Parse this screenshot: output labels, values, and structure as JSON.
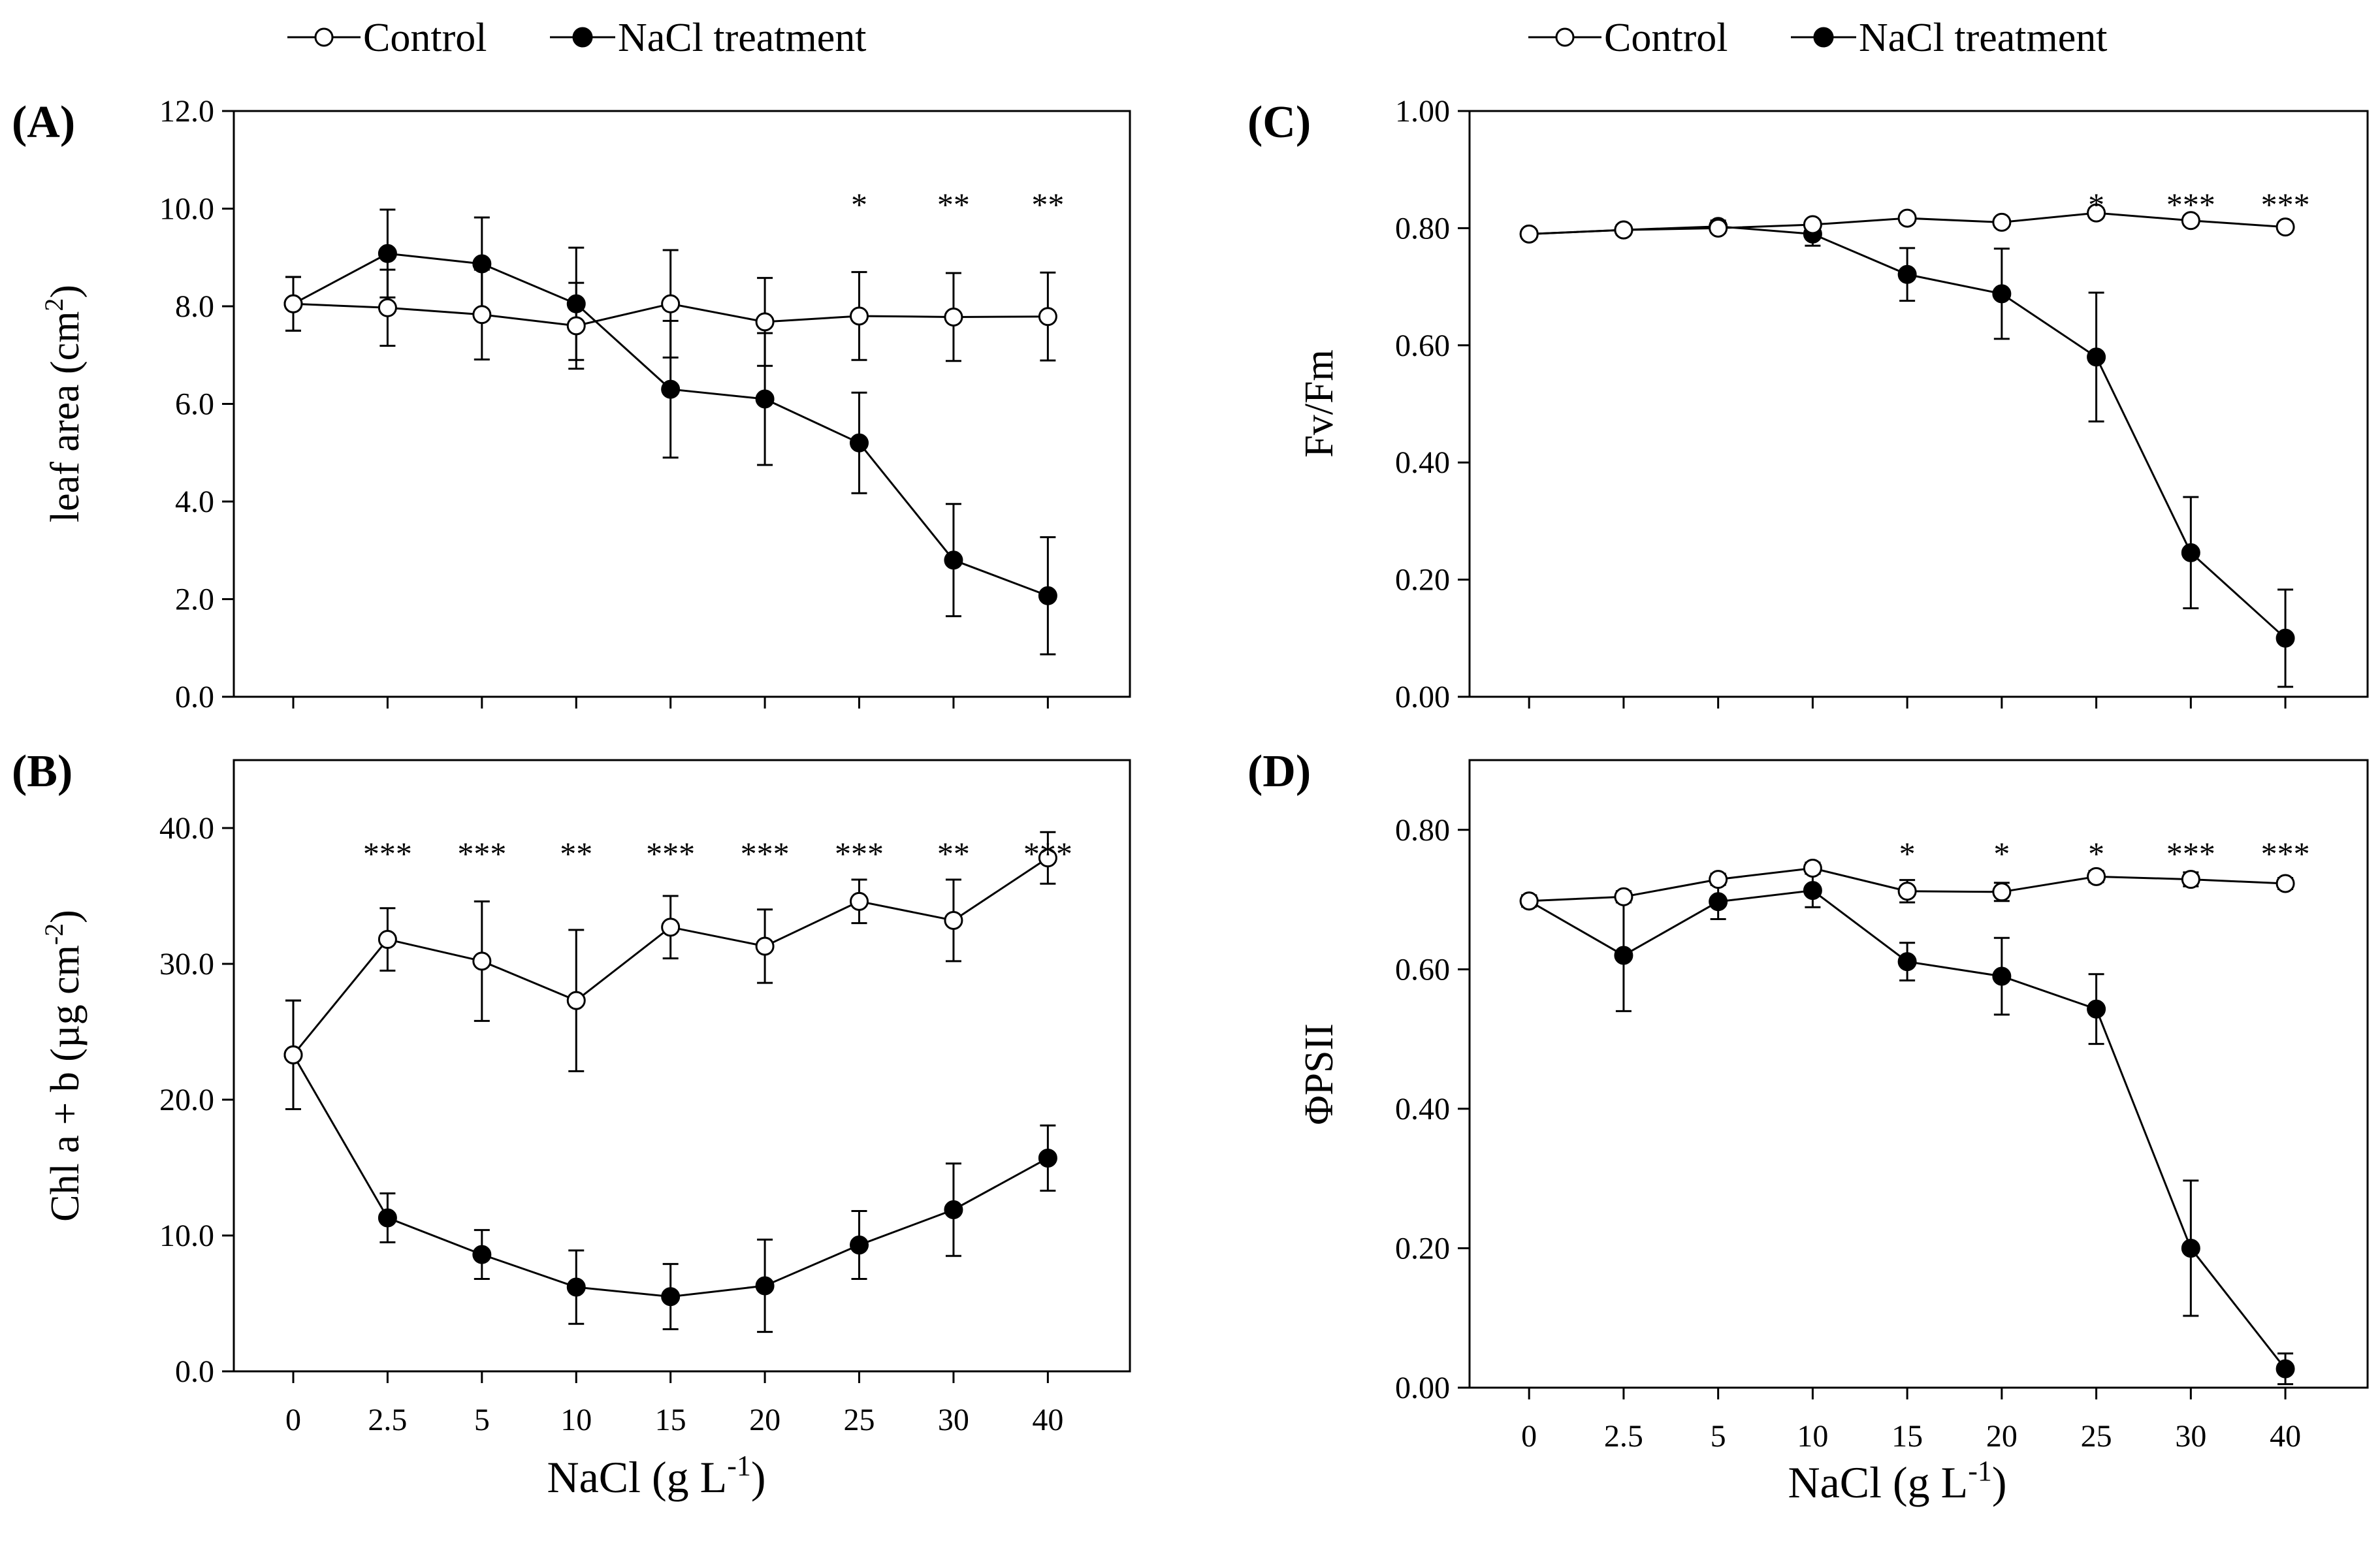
{
  "legend": {
    "control_label": "Control",
    "nacl_label": "NaCl treatment"
  },
  "x_title": "NaCl (g L",
  "x_title_exp": "-1",
  "x_title_end": ")",
  "categories": [
    "0",
    "2.5",
    "5",
    "10",
    "15",
    "20",
    "25",
    "30",
    "40"
  ],
  "chart_data": [
    {
      "type": "line",
      "panel": "(A)",
      "ylabel": "leaf area (cm",
      "ylabel_exp": "2",
      "ylabel_end": ")",
      "ylim": [
        0,
        12
      ],
      "yticks": [
        "0.0",
        "2.0",
        "4.0",
        "6.0",
        "8.0",
        "10.0",
        "12.0"
      ],
      "show_xticklabels": false,
      "series": [
        {
          "name": "Control",
          "values": [
            8.05,
            7.97,
            7.83,
            7.6,
            8.05,
            7.68,
            7.8,
            7.78,
            7.79
          ],
          "errors": [
            0.55,
            0.78,
            0.92,
            0.88,
            1.1,
            0.9,
            0.9,
            0.9,
            0.9
          ]
        },
        {
          "name": "NaCl treatment",
          "values": [
            8.05,
            9.08,
            8.87,
            8.05,
            6.3,
            6.1,
            5.2,
            2.8,
            2.07
          ],
          "errors": [
            0.55,
            0.9,
            0.95,
            1.15,
            1.4,
            1.35,
            1.03,
            1.15,
            1.2
          ]
        }
      ],
      "significance": [
        "",
        "",
        "",
        "",
        "",
        "",
        "*",
        "**",
        "**"
      ]
    },
    {
      "type": "line",
      "panel": "(B)",
      "ylabel": "Chl a + b (µg cm",
      "ylabel_exp": "-2",
      "ylabel_end": ")",
      "ylim": [
        0,
        45
      ],
      "yticks": [
        "0.0",
        "10.0",
        "20.0",
        "30.0",
        "40.0"
      ],
      "show_xticklabels": true,
      "series": [
        {
          "name": "Control",
          "values": [
            23.3,
            31.8,
            30.2,
            27.3,
            32.7,
            31.3,
            34.6,
            33.2,
            37.8
          ],
          "errors": [
            4.0,
            2.3,
            4.4,
            5.2,
            2.3,
            2.7,
            1.6,
            3.0,
            1.9
          ]
        },
        {
          "name": "NaCl treatment",
          "values": [
            23.3,
            11.3,
            8.6,
            6.2,
            5.5,
            6.3,
            9.3,
            11.9,
            15.7
          ],
          "errors": [
            4.0,
            1.8,
            1.8,
            2.7,
            2.4,
            3.4,
            2.5,
            3.4,
            2.4
          ]
        }
      ],
      "significance": [
        "",
        "***",
        "***",
        "**",
        "***",
        "***",
        "***",
        "**",
        "***"
      ]
    },
    {
      "type": "line",
      "panel": "(C)",
      "ylabel": "Fv/Fm",
      "ylabel_exp": "",
      "ylabel_end": "",
      "ylim": [
        0,
        1
      ],
      "yticks": [
        "0.00",
        "0.20",
        "0.40",
        "0.60",
        "0.80",
        "1.00"
      ],
      "show_xticklabels": false,
      "series": [
        {
          "name": "Control",
          "values": [
            0.79,
            0.797,
            0.8,
            0.806,
            0.817,
            0.81,
            0.826,
            0.813,
            0.802
          ],
          "errors": [
            0.008,
            0.008,
            0.008,
            0.008,
            0.008,
            0.008,
            0.008,
            0.008,
            0.008
          ]
        },
        {
          "name": "NaCl treatment",
          "values": [
            0.79,
            0.797,
            0.803,
            0.79,
            0.721,
            0.688,
            0.58,
            0.246,
            0.1
          ],
          "errors": [
            0.008,
            0.008,
            0.01,
            0.02,
            0.045,
            0.077,
            0.11,
            0.095,
            0.083
          ]
        }
      ],
      "significance": [
        "",
        "",
        "",
        "",
        "",
        "",
        "*",
        "***",
        "***"
      ]
    },
    {
      "type": "line",
      "panel": "(D)",
      "ylabel": "ΦPSII",
      "ylabel_exp": "",
      "ylabel_end": "",
      "ylim": [
        0,
        0.9
      ],
      "yticks": [
        "0.00",
        "0.20",
        "0.40",
        "0.60",
        "0.80"
      ],
      "show_xticklabels": true,
      "series": [
        {
          "name": "Control",
          "values": [
            0.698,
            0.704,
            0.729,
            0.745,
            0.712,
            0.711,
            0.733,
            0.729,
            0.723
          ],
          "errors": [
            0.008,
            0.008,
            0.008,
            0.008,
            0.016,
            0.013,
            0.008,
            0.01,
            0.008
          ]
        },
        {
          "name": "NaCl treatment",
          "values": [
            0.698,
            0.62,
            0.697,
            0.713,
            0.611,
            0.59,
            0.543,
            0.2,
            0.027
          ],
          "errors": [
            0.008,
            0.08,
            0.025,
            0.024,
            0.027,
            0.055,
            0.05,
            0.097,
            0.022
          ]
        }
      ],
      "significance": [
        "",
        "",
        "",
        "",
        "*",
        "*",
        "*",
        "***",
        "***"
      ]
    }
  ]
}
